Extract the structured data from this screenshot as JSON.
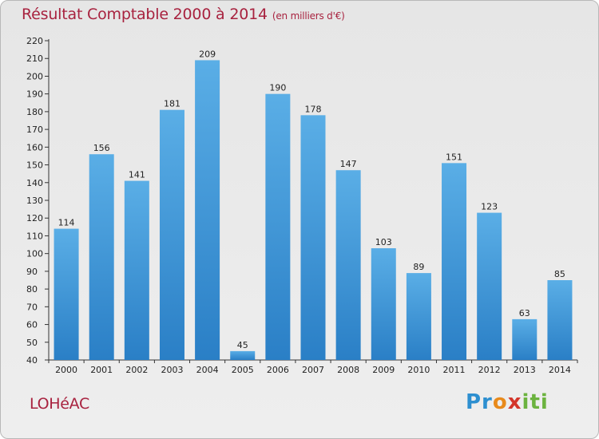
{
  "header": {
    "title": "Résultat Comptable 2000 à 2014",
    "unit": "(en milliers d'€)"
  },
  "footer": {
    "commune": "LOHéAC",
    "logo_parts": [
      "Pr",
      "o",
      "x",
      "iti"
    ]
  },
  "colors": {
    "title": "#a8223f",
    "bar_top": "#5aaee6",
    "bar_bottom": "#2a7fc6"
  },
  "chart_data": {
    "type": "bar",
    "title": "Résultat Comptable 2000 à 2014",
    "ylabel": "en milliers d'€",
    "xlabel": "",
    "categories": [
      "2000",
      "2001",
      "2002",
      "2003",
      "2004",
      "2005",
      "2006",
      "2007",
      "2008",
      "2009",
      "2010",
      "2011",
      "2012",
      "2013",
      "2014"
    ],
    "values": [
      114,
      156,
      141,
      181,
      209,
      45,
      190,
      178,
      147,
      103,
      89,
      151,
      123,
      63,
      85
    ],
    "ylim": [
      40,
      220
    ],
    "ytick_step": 10,
    "grid": false
  }
}
